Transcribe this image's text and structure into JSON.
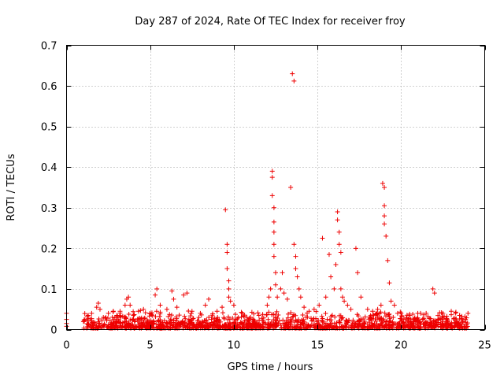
{
  "chart_data": {
    "type": "scatter",
    "title": "Day 287 of 2024, Rate Of TEC Index for receiver froy",
    "xlabel": "GPS time / hours",
    "ylabel": "ROTI / TECUs",
    "xlim": [
      0,
      25
    ],
    "ylim": [
      0,
      0.7
    ],
    "xticks": [
      0,
      5,
      10,
      15,
      20,
      25
    ],
    "yticks": [
      0,
      0.1,
      0.2,
      0.3,
      0.4,
      0.5,
      0.6,
      0.7
    ],
    "xtick_labels": [
      "0",
      "5",
      "10",
      "15",
      "20",
      "25"
    ],
    "ytick_labels": [
      "0",
      "0.1",
      "0.2",
      "0.3",
      "0.4",
      "0.5",
      "0.6",
      "0.7"
    ],
    "grid": true,
    "marker": "+",
    "color": "#ee0000",
    "series": [
      {
        "name": "ROTI",
        "x": [
          0.0,
          0.0,
          0.0,
          0.0,
          1.1,
          1.3,
          1.5,
          1.8,
          1.9,
          2.0,
          2.2,
          2.5,
          2.8,
          3.0,
          3.2,
          3.5,
          3.6,
          3.7,
          3.8,
          4.0,
          4.3,
          4.6,
          5.0,
          5.3,
          5.4,
          5.6,
          6.0,
          6.3,
          6.4,
          6.6,
          7.0,
          7.2,
          7.5,
          8.0,
          8.3,
          8.5,
          9.0,
          9.3,
          9.5,
          9.6,
          9.6,
          9.6,
          9.7,
          9.7,
          9.7,
          9.8,
          10.0,
          10.5,
          11.0,
          11.5,
          12.0,
          12.1,
          12.2,
          12.3,
          12.3,
          12.3,
          12.4,
          12.4,
          12.4,
          12.4,
          12.4,
          12.5,
          12.5,
          12.6,
          12.8,
          12.9,
          13.0,
          13.2,
          13.4,
          13.5,
          13.6,
          13.6,
          13.7,
          13.7,
          13.8,
          13.9,
          14.0,
          14.2,
          14.5,
          14.8,
          15.1,
          15.3,
          15.5,
          15.7,
          15.8,
          16.0,
          16.1,
          16.2,
          16.2,
          16.3,
          16.3,
          16.4,
          16.4,
          16.5,
          16.6,
          16.8,
          17.0,
          17.3,
          17.4,
          17.6,
          18.0,
          18.3,
          18.6,
          18.8,
          18.9,
          19.0,
          19.0,
          19.0,
          19.0,
          19.1,
          19.2,
          19.3,
          19.4,
          19.6,
          20.0,
          20.5,
          21.0,
          21.5,
          21.9,
          22.0,
          22.5,
          23.0,
          23.5,
          24.0
        ],
        "y": [
          0.04,
          0.025,
          0.015,
          0.008,
          0.025,
          0.035,
          0.04,
          0.055,
          0.065,
          0.05,
          0.03,
          0.04,
          0.045,
          0.035,
          0.045,
          0.06,
          0.075,
          0.08,
          0.06,
          0.035,
          0.045,
          0.05,
          0.04,
          0.085,
          0.1,
          0.06,
          0.05,
          0.095,
          0.075,
          0.055,
          0.085,
          0.09,
          0.045,
          0.04,
          0.06,
          0.075,
          0.045,
          0.055,
          0.295,
          0.21,
          0.19,
          0.15,
          0.12,
          0.1,
          0.08,
          0.07,
          0.06,
          0.04,
          0.03,
          0.035,
          0.06,
          0.08,
          0.1,
          0.39,
          0.375,
          0.33,
          0.3,
          0.265,
          0.24,
          0.21,
          0.18,
          0.14,
          0.11,
          0.08,
          0.1,
          0.14,
          0.09,
          0.075,
          0.35,
          0.63,
          0.612,
          0.21,
          0.18,
          0.15,
          0.13,
          0.1,
          0.08,
          0.055,
          0.045,
          0.05,
          0.06,
          0.225,
          0.08,
          0.185,
          0.13,
          0.1,
          0.16,
          0.29,
          0.27,
          0.24,
          0.21,
          0.19,
          0.1,
          0.08,
          0.07,
          0.06,
          0.05,
          0.2,
          0.14,
          0.08,
          0.05,
          0.045,
          0.05,
          0.06,
          0.36,
          0.35,
          0.305,
          0.28,
          0.26,
          0.23,
          0.17,
          0.115,
          0.07,
          0.06,
          0.04,
          0.035,
          0.04,
          0.04,
          0.1,
          0.09,
          0.04,
          0.045,
          0.035,
          0.04
        ]
      }
    ],
    "dense_floor": {
      "x_range": [
        1.0,
        24.0
      ],
      "description": "dense band of points between 0 and ~0.05 across the day"
    }
  }
}
